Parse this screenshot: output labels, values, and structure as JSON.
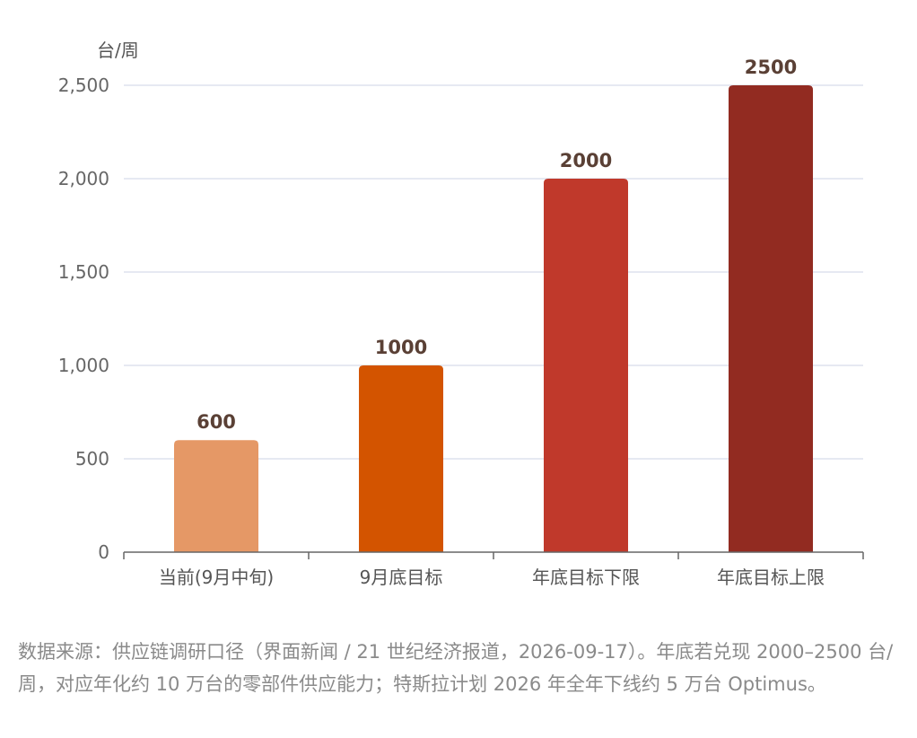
{
  "chart_data": {
    "type": "bar",
    "ylabel": "台/周",
    "categories": [
      "当前(9月中旬)",
      "9月底目标",
      "年底目标下限",
      "年底目标上限"
    ],
    "values": [
      600,
      1000,
      2000,
      2500
    ],
    "data_labels": [
      "600",
      "1000",
      "2000",
      "2500"
    ],
    "bar_colors": [
      "#E59866",
      "#D35400",
      "#C0392B",
      "#922B21"
    ],
    "ylim": [
      0,
      2500
    ],
    "yticks": [
      0,
      500,
      1000,
      1500,
      2000,
      2500
    ],
    "ytick_labels": [
      "0",
      "500",
      "1,000",
      "1,500",
      "2,000",
      "2,500"
    ],
    "grid": true,
    "legend": "none"
  },
  "caption": "数据来源：供应链调研口径（界面新闻 / 21 世纪经济报道，2026-09-17）。年底若兑现 2000–2500 台/周，对应年化约 10 万台的零部件供应能力；特斯拉计划 2026 年全年下线约 5 万台 Optimus。",
  "colors": {
    "grid": "#dde2ee",
    "axis": "#666666"
  }
}
